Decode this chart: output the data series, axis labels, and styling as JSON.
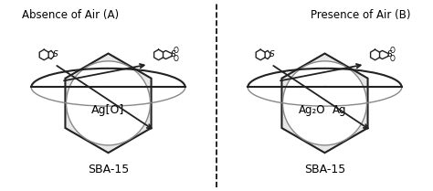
{
  "panel_A_title": "Absence of Air (A)",
  "panel_B_title": "Presence of Air (B)",
  "label_SBA15": "SBA-15",
  "label_AgO_A": "Ag[O]",
  "label_Ag2O_B": "Ag₂O",
  "label_Ag_B": "Ag",
  "bg_color": "#ffffff",
  "line_color": "#222222",
  "shape_fill": "#e8e8e8",
  "title_fontsize": 8.5,
  "label_fontsize": 7.5,
  "sba_fontsize": 8.5
}
